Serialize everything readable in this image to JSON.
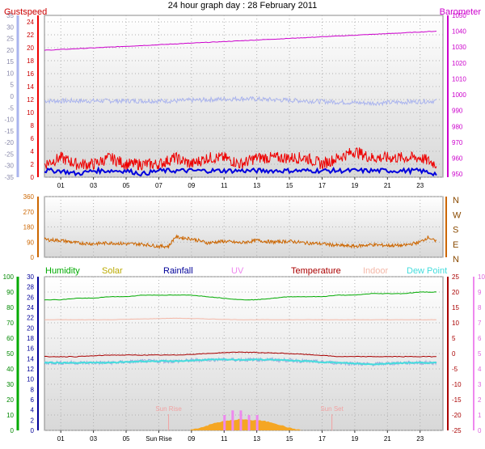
{
  "title": "24 hour graph day : 28 February 2011",
  "colors": {
    "gust": "#ee0000",
    "wind": "#0000dd",
    "barometer": "#cc00cc",
    "temp_axis": "#aab4ee",
    "temperature_trace": "#aab4ee",
    "winddir": "#cc6600",
    "humidity": "#00aa00",
    "solar": "#bbaa00",
    "rainfall": "#000099",
    "uv": "#ee88ee",
    "temperature": "#aa0000",
    "indoor": "#f4b8a8",
    "dewpoint": "#44dddd",
    "sun": "#f2a2a2",
    "solar_fill": "#f5a623",
    "grid": "#b0b0b0"
  },
  "x_ticks": [
    "01",
    "03",
    "05",
    "07",
    "09",
    "11",
    "13",
    "15",
    "17",
    "19",
    "21",
    "23"
  ],
  "x_ticks_bottom": [
    "01",
    "03",
    "05",
    "Sun Rise",
    "09",
    "11",
    "13",
    "15",
    "17",
    "19",
    "21",
    "23"
  ],
  "chart_data": [
    {
      "type": "line",
      "panel": "wind",
      "legend": [
        "Gustspeed",
        "Barometer"
      ],
      "left_axis_ticks": [
        "24",
        "22",
        "20",
        "18",
        "16",
        "14",
        "12",
        "10",
        "8",
        "6",
        "4",
        "2",
        "0"
      ],
      "left_outer_ticks": [
        "35",
        "30",
        "25",
        "20",
        "15",
        "10",
        "5",
        "0",
        "-5",
        "-10",
        "-15",
        "-20",
        "-25",
        "-30",
        "-35"
      ],
      "right_axis_ticks": [
        "1050",
        "1040",
        "1030",
        "1020",
        "1010",
        "1000",
        "990",
        "980",
        "970",
        "960",
        "950"
      ],
      "ylim_left": [
        0,
        25
      ],
      "ylim_outer": [
        -35,
        35
      ],
      "ylim_right": [
        948,
        1050
      ],
      "x_range": [
        0,
        24.4
      ],
      "series": [
        {
          "name": "Gustspeed",
          "axis": "left",
          "x": [
            0,
            1,
            2,
            3,
            4,
            5,
            6,
            7,
            8,
            9,
            10,
            11,
            12,
            13,
            14,
            15,
            16,
            17,
            18,
            19,
            20,
            21,
            22,
            23,
            24
          ],
          "values": [
            2,
            3,
            2,
            2,
            3,
            2,
            2,
            2,
            3,
            2,
            3,
            3,
            2,
            3,
            3,
            3,
            3,
            2,
            3,
            4,
            3,
            3,
            3,
            3,
            2
          ]
        },
        {
          "name": "",
          "axis": "left",
          "x": [
            0,
            1,
            2,
            3,
            4,
            5,
            6,
            7,
            8,
            9,
            10,
            11,
            12,
            13,
            14,
            15,
            16,
            17,
            18,
            19,
            20,
            21,
            22,
            23,
            24
          ],
          "values": [
            1,
            1,
            0.5,
            1,
            1,
            1,
            0.5,
            1,
            1,
            1,
            1,
            1,
            1,
            1,
            1,
            1,
            1,
            1,
            1,
            1,
            1,
            1,
            1,
            1,
            0.5
          ]
        },
        {
          "name": "Barometer",
          "axis": "right",
          "x": [
            0,
            24
          ],
          "values": [
            1028,
            1040
          ]
        },
        {
          "name": "",
          "axis": "outer",
          "x": [
            0,
            4,
            8,
            12,
            16,
            20,
            24
          ],
          "values": [
            -2,
            -2,
            -2,
            -1,
            -2,
            -3,
            -2
          ]
        }
      ]
    },
    {
      "type": "line",
      "panel": "wind_direction",
      "left_axis_ticks": [
        "360",
        "270",
        "180",
        "90",
        "0"
      ],
      "right_axis_ticks": [
        "N",
        "W",
        "S",
        "E",
        "N"
      ],
      "ylim": [
        0,
        360
      ],
      "x_range": [
        0,
        24.4
      ],
      "series": [
        {
          "name": "",
          "x": [
            0,
            1,
            2,
            3,
            4,
            5,
            6,
            7,
            7.6,
            8,
            9,
            10,
            11,
            12,
            13,
            14,
            15,
            16,
            17,
            18,
            19,
            20,
            21,
            22,
            23,
            23.5,
            24
          ],
          "values": [
            105,
            100,
            85,
            80,
            85,
            80,
            78,
            65,
            65,
            120,
            110,
            85,
            95,
            85,
            100,
            90,
            95,
            85,
            80,
            70,
            65,
            75,
            70,
            70,
            90,
            120,
            90
          ]
        }
      ]
    },
    {
      "type": "line",
      "panel": "climate",
      "legend": [
        "Humidity",
        "Solar",
        "Rainfall",
        "UV",
        "Temperature",
        "Indoor",
        "Dew Point"
      ],
      "humidity_ticks": [
        "100",
        "90",
        "80",
        "70",
        "60",
        "50",
        "40",
        "30",
        "20",
        "10",
        "0"
      ],
      "rain_ticks": [
        "30",
        "28",
        "26",
        "24",
        "22",
        "20",
        "18",
        "16",
        "14",
        "12",
        "10",
        "8",
        "6",
        "4",
        "2",
        "0"
      ],
      "temp_ticks": [
        "25",
        "20",
        "15",
        "10",
        "5",
        "0",
        "-5",
        "-10",
        "-15",
        "-20",
        "-25"
      ],
      "uv_ticks": [
        "10",
        "9",
        "8",
        "7",
        "6",
        "5",
        "4",
        "3",
        "2",
        "1",
        "0"
      ],
      "annotations": [
        "Sun Rise",
        "Sun Set"
      ],
      "sunrise_hour": 7.6,
      "sunset_hour": 17.6,
      "ylim_humidity": [
        0,
        100
      ],
      "ylim_temp": [
        -25,
        25
      ],
      "x_range": [
        0,
        24.4
      ],
      "series": [
        {
          "name": "Humidity",
          "axis": "humidity",
          "x": [
            0,
            1,
            2,
            3,
            4,
            5,
            6,
            7,
            8,
            9,
            10,
            11,
            12,
            13,
            14,
            15,
            16,
            17,
            18,
            19,
            20,
            21,
            22,
            23,
            24
          ],
          "values": [
            85,
            85,
            86,
            86,
            87,
            87,
            88,
            88,
            88,
            88,
            87,
            86,
            85,
            85,
            86,
            87,
            87,
            87,
            88,
            88,
            89,
            89,
            89,
            90,
            90
          ]
        },
        {
          "name": "Temperature",
          "axis": "temp",
          "x": [
            0,
            2,
            4,
            6,
            8,
            10,
            11,
            12,
            13,
            14,
            15,
            16,
            17,
            18,
            20,
            22,
            24
          ],
          "values": [
            -1,
            -1,
            -0.5,
            -0.5,
            -0.5,
            0,
            0.3,
            0.5,
            0.3,
            0.2,
            0,
            -0.3,
            -0.6,
            -1,
            -1,
            -1,
            -1
          ]
        },
        {
          "name": "Indoor",
          "axis": "temp",
          "x": [
            0,
            4,
            8,
            12,
            16,
            20,
            24
          ],
          "values": [
            11,
            11,
            11.5,
            11,
            11,
            11,
            11
          ]
        },
        {
          "name": "Dew Point",
          "axis": "temp",
          "x": [
            0,
            2,
            4,
            6,
            8,
            10,
            12,
            14,
            16,
            18,
            20,
            22,
            24
          ],
          "values": [
            -3,
            -3,
            -3,
            -2.5,
            -2.5,
            -2,
            -2,
            -2,
            -2.5,
            -3,
            -3.5,
            -3,
            -3
          ]
        },
        {
          "name": "Solar",
          "axis": "rain",
          "x": [
            8.8,
            9.5,
            10,
            10.5,
            11,
            11.5,
            12,
            12.5,
            13,
            13.5,
            14,
            14.5,
            15,
            15.8
          ],
          "values": [
            0,
            0.5,
            1,
            1.5,
            1.8,
            2,
            2.2,
            2,
            2,
            1.8,
            1.5,
            1,
            0.5,
            0
          ]
        },
        {
          "name": "UV",
          "axis": "uv",
          "x": [
            11,
            11.5,
            12,
            12.5,
            13
          ],
          "values": [
            1,
            1.3,
            1.3,
            1,
            1
          ]
        }
      ]
    }
  ]
}
